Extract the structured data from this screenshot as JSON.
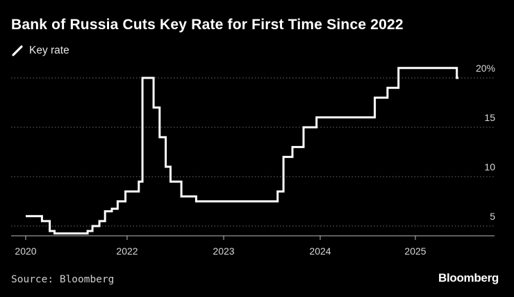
{
  "title": "Bank of Russia Cuts Key Rate for First Time Since 2022",
  "legend_label": "Key rate",
  "source": "Source: Bloomberg",
  "brand": "Bloomberg",
  "colors": {
    "background": "#000000",
    "line": "#ffffff",
    "grid": "#6e6e6e"
  },
  "chart_data": {
    "type": "line",
    "title": "Bank of Russia Cuts Key Rate for First Time Since 2022",
    "xlabel": "",
    "ylabel": "",
    "y_axis_position": "right",
    "ylim": [
      3.5,
      21
    ],
    "y_ticks": [
      5,
      10,
      15,
      20
    ],
    "y_tick_labels": [
      "5",
      "10",
      "15",
      "20%"
    ],
    "x_ticks": [
      {
        "date": "2020-01-01",
        "label": "2020"
      },
      {
        "date": "2022-01-01",
        "label": "2022"
      },
      {
        "date": "2023-01-01",
        "label": "2023"
      },
      {
        "date": "2024-01-01",
        "label": "2024"
      },
      {
        "date": "2025-01-01",
        "label": "2025"
      }
    ],
    "grid": true,
    "legend_position": "top-left",
    "series": [
      {
        "name": "Key rate",
        "step": true,
        "points": [
          {
            "date": "2020-02-10",
            "value": 6.0
          },
          {
            "date": "2020-04-27",
            "value": 5.5
          },
          {
            "date": "2020-06-22",
            "value": 4.5
          },
          {
            "date": "2020-07-27",
            "value": 4.25
          },
          {
            "date": "2021-03-22",
            "value": 4.5
          },
          {
            "date": "2021-04-26",
            "value": 5.0
          },
          {
            "date": "2021-06-15",
            "value": 5.5
          },
          {
            "date": "2021-07-26",
            "value": 6.5
          },
          {
            "date": "2021-09-13",
            "value": 6.75
          },
          {
            "date": "2021-10-25",
            "value": 7.5
          },
          {
            "date": "2021-12-20",
            "value": 8.5
          },
          {
            "date": "2022-02-14",
            "value": 9.5
          },
          {
            "date": "2022-02-28",
            "value": 20.0
          },
          {
            "date": "2022-04-11",
            "value": 17.0
          },
          {
            "date": "2022-05-04",
            "value": 14.0
          },
          {
            "date": "2022-05-27",
            "value": 11.0
          },
          {
            "date": "2022-06-14",
            "value": 9.5
          },
          {
            "date": "2022-07-25",
            "value": 8.0
          },
          {
            "date": "2022-09-19",
            "value": 7.5
          },
          {
            "date": "2023-07-24",
            "value": 8.5
          },
          {
            "date": "2023-08-15",
            "value": 12.0
          },
          {
            "date": "2023-09-18",
            "value": 13.0
          },
          {
            "date": "2023-10-30",
            "value": 15.0
          },
          {
            "date": "2023-12-18",
            "value": 16.0
          },
          {
            "date": "2024-07-29",
            "value": 18.0
          },
          {
            "date": "2024-09-16",
            "value": 19.0
          },
          {
            "date": "2024-10-28",
            "value": 21.0
          },
          {
            "date": "2025-06-09",
            "value": 20.0
          }
        ]
      }
    ]
  }
}
